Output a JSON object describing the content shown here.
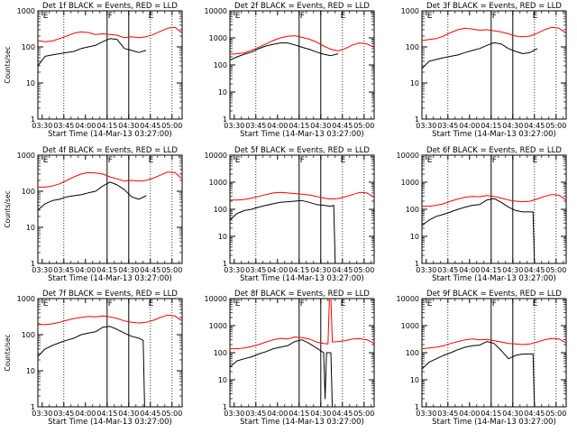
{
  "chart_data": [
    {
      "type": "line",
      "title": "Det 1f BLACK = Events, RED = LLD",
      "xlabel": "Start Time (14-Mar-13 03:27:00)",
      "ylabel": "Counts/sec",
      "ylim": [
        1,
        1000
      ],
      "yscale": "log",
      "y_ticks": [
        1,
        10,
        100,
        1000
      ],
      "y_tick_labels": [
        "1",
        "10",
        "100",
        "1000"
      ],
      "x_ticks": [
        "03:30",
        "03:45",
        "04:00",
        "04:15",
        "04:30",
        "04:45",
        "05:00"
      ],
      "markers": [
        "E",
        "F",
        "E"
      ],
      "series": [
        {
          "color": "#ff0000",
          "x": [
            0,
            5,
            10,
            15,
            20,
            25,
            30,
            35,
            40,
            45,
            50,
            55,
            60,
            65,
            70,
            75,
            80,
            85,
            90,
            95,
            100
          ],
          "values": [
            150,
            140,
            145,
            170,
            200,
            240,
            260,
            250,
            220,
            230,
            220,
            210,
            180,
            190,
            180,
            190,
            220,
            270,
            330,
            350,
            240
          ]
        },
        {
          "color": "#000000",
          "x": [
            0,
            5,
            10,
            15,
            20,
            25,
            30,
            35,
            40,
            45,
            50,
            55,
            60,
            65,
            70,
            75
          ],
          "values": [
            30,
            55,
            60,
            65,
            70,
            75,
            90,
            100,
            110,
            140,
            170,
            160,
            90,
            80,
            70,
            80
          ]
        }
      ]
    },
    {
      "type": "line",
      "title": "Det 2f BLACK = Events, RED = LLD",
      "xlabel": "Start Time (14-Mar-13 03:27:00)",
      "ylabel": "",
      "ylim": [
        1,
        10000
      ],
      "yscale": "log",
      "y_ticks": [
        1,
        10,
        100,
        1000,
        10000
      ],
      "y_tick_labels": [
        "1",
        "10",
        "100",
        "1000",
        "10000"
      ],
      "x_ticks": [
        "03:30",
        "03:45",
        "04:00",
        "04:15",
        "04:30",
        "04:45",
        "05:00"
      ],
      "markers": [
        "E",
        "F",
        "E"
      ],
      "series": [
        {
          "color": "#ff0000",
          "x": [
            0,
            5,
            10,
            15,
            20,
            25,
            30,
            35,
            40,
            45,
            50,
            55,
            60,
            65,
            70,
            75,
            80,
            85,
            90,
            95,
            100
          ],
          "values": [
            250,
            260,
            280,
            350,
            450,
            600,
            800,
            1000,
            1150,
            1200,
            1050,
            900,
            700,
            500,
            380,
            330,
            400,
            550,
            650,
            600,
            450
          ]
        },
        {
          "color": "#000000",
          "x": [
            0,
            5,
            10,
            15,
            20,
            25,
            30,
            35,
            40,
            45,
            50,
            55,
            60,
            65,
            70,
            75
          ],
          "values": [
            150,
            200,
            250,
            300,
            400,
            500,
            580,
            650,
            650,
            550,
            450,
            380,
            300,
            250,
            220,
            260
          ]
        }
      ]
    },
    {
      "type": "line",
      "title": "Det 3f BLACK = Events, RED = LLD",
      "xlabel": "Start Time (14-Mar-13 03:27:00)",
      "ylabel": "",
      "ylim": [
        1,
        1000
      ],
      "yscale": "log",
      "y_ticks": [
        1,
        10,
        100,
        1000
      ],
      "y_tick_labels": [
        "1",
        "10",
        "100",
        "1000"
      ],
      "x_ticks": [
        "03:30",
        "03:45",
        "04:00",
        "04:15",
        "04:30",
        "04:45",
        "05:00"
      ],
      "markers": [
        "E",
        "F",
        "E"
      ],
      "series": [
        {
          "color": "#ff0000",
          "x": [
            0,
            5,
            10,
            15,
            20,
            25,
            30,
            35,
            40,
            45,
            50,
            55,
            60,
            65,
            70,
            75,
            80,
            85,
            90,
            95,
            100
          ],
          "values": [
            150,
            160,
            170,
            200,
            250,
            300,
            330,
            310,
            290,
            300,
            280,
            260,
            230,
            200,
            190,
            200,
            240,
            300,
            350,
            330,
            240
          ]
        },
        {
          "color": "#000000",
          "x": [
            0,
            5,
            10,
            15,
            20,
            25,
            30,
            35,
            40,
            45,
            50,
            55,
            60,
            65,
            70,
            75,
            80
          ],
          "values": [
            25,
            40,
            45,
            50,
            55,
            60,
            70,
            80,
            90,
            110,
            130,
            120,
            90,
            75,
            65,
            70,
            90
          ]
        }
      ]
    },
    {
      "type": "line",
      "title": "Det 4f BLACK = Events, RED = LLD",
      "xlabel": "Start Time (14-Mar-13 03:27:00)",
      "ylabel": "Counts/sec",
      "ylim": [
        1,
        1000
      ],
      "yscale": "log",
      "y_ticks": [
        1,
        10,
        100,
        1000
      ],
      "y_tick_labels": [
        "1",
        "10",
        "100",
        "1000"
      ],
      "x_ticks": [
        "03:30",
        "03:45",
        "04:00",
        "04:15",
        "04:30",
        "04:45",
        "05:00"
      ],
      "markers": [
        "E",
        "F",
        "E"
      ],
      "series": [
        {
          "color": "#ff0000",
          "x": [
            0,
            5,
            10,
            15,
            20,
            25,
            30,
            35,
            40,
            45,
            50,
            55,
            60,
            65,
            70,
            75,
            80,
            85,
            90,
            95,
            100
          ],
          "values": [
            130,
            130,
            140,
            160,
            200,
            250,
            300,
            330,
            320,
            300,
            250,
            220,
            190,
            200,
            190,
            200,
            230,
            280,
            340,
            330,
            220
          ]
        },
        {
          "color": "#000000",
          "x": [
            0,
            5,
            10,
            15,
            20,
            25,
            30,
            35,
            40,
            45,
            50,
            55,
            60,
            65,
            70,
            75
          ],
          "values": [
            30,
            45,
            55,
            60,
            70,
            75,
            80,
            90,
            100,
            140,
            180,
            150,
            110,
            70,
            60,
            75
          ]
        }
      ]
    },
    {
      "type": "line",
      "title": "Det 5f BLACK = Events, RED = LLD",
      "xlabel": "Start Time (14-Mar-13 03:27:00)",
      "ylabel": "",
      "ylim": [
        1,
        10000
      ],
      "yscale": "log",
      "y_ticks": [
        1,
        10,
        100,
        1000,
        10000
      ],
      "y_tick_labels": [
        "1",
        "10",
        "100",
        "1000",
        "10000"
      ],
      "x_ticks": [
        "03:30",
        "03:45",
        "04:00",
        "04:15",
        "04:30",
        "04:45",
        "05:00"
      ],
      "markers": [
        "E",
        "F",
        "E"
      ],
      "series": [
        {
          "color": "#ff0000",
          "x": [
            0,
            5,
            10,
            15,
            20,
            25,
            30,
            35,
            40,
            45,
            50,
            55,
            60,
            65,
            70,
            75,
            80,
            85,
            90,
            95,
            100
          ],
          "values": [
            220,
            220,
            230,
            260,
            300,
            350,
            400,
            420,
            400,
            380,
            360,
            340,
            300,
            260,
            240,
            250,
            290,
            350,
            420,
            400,
            280
          ]
        },
        {
          "color": "#000000",
          "x": [
            0,
            5,
            10,
            15,
            20,
            25,
            30,
            35,
            40,
            45,
            50,
            55,
            60,
            65,
            70,
            72,
            73
          ],
          "values": [
            40,
            70,
            90,
            100,
            120,
            140,
            160,
            180,
            190,
            200,
            210,
            180,
            150,
            140,
            130,
            140,
            1
          ]
        }
      ]
    },
    {
      "type": "line",
      "title": "Det 6f BLACK = Events, RED = LLD",
      "xlabel": "Start Time (14-Mar-13 03:27:00)",
      "ylabel": "",
      "ylim": [
        1,
        10000
      ],
      "yscale": "log",
      "y_ticks": [
        1,
        10,
        100,
        1000,
        10000
      ],
      "y_tick_labels": [
        "1",
        "10",
        "100",
        "1000",
        "10000"
      ],
      "x_ticks": [
        "03:30",
        "03:45",
        "04:00",
        "04:15",
        "04:30",
        "04:45",
        "05:00"
      ],
      "markers": [
        "E",
        "F",
        "E"
      ],
      "series": [
        {
          "color": "#ff0000",
          "x": [
            0,
            5,
            10,
            15,
            20,
            25,
            30,
            35,
            40,
            45,
            50,
            55,
            60,
            65,
            70,
            75,
            80,
            85,
            90,
            95,
            100
          ],
          "values": [
            130,
            130,
            140,
            160,
            200,
            240,
            280,
            300,
            290,
            320,
            300,
            260,
            220,
            200,
            190,
            200,
            240,
            300,
            350,
            330,
            220
          ]
        },
        {
          "color": "#000000",
          "x": [
            0,
            5,
            10,
            15,
            20,
            25,
            30,
            35,
            40,
            45,
            50,
            55,
            60,
            65,
            70,
            75,
            77,
            78
          ],
          "values": [
            25,
            40,
            55,
            65,
            80,
            100,
            120,
            140,
            150,
            220,
            250,
            180,
            120,
            90,
            80,
            80,
            80,
            1
          ]
        }
      ]
    },
    {
      "type": "line",
      "title": "Det 7f BLACK = Events, RED = LLD",
      "xlabel": "Start Time (14-Mar-13 03:27:00)",
      "ylabel": "Counts/sec",
      "ylim": [
        1,
        1000
      ],
      "yscale": "log",
      "y_ticks": [
        1,
        10,
        100,
        1000
      ],
      "y_tick_labels": [
        "1",
        "10",
        "100",
        "1000"
      ],
      "x_ticks": [
        "03:30",
        "03:45",
        "04:00",
        "04:15",
        "04:30",
        "04:45",
        "05:00"
      ],
      "markers": [
        "E",
        "F",
        "E"
      ],
      "series": [
        {
          "color": "#ff0000",
          "x": [
            0,
            5,
            10,
            15,
            20,
            25,
            30,
            35,
            40,
            45,
            50,
            55,
            60,
            65,
            70,
            75,
            80,
            85,
            90,
            95,
            100
          ],
          "values": [
            190,
            190,
            200,
            220,
            250,
            280,
            300,
            320,
            310,
            330,
            310,
            280,
            240,
            220,
            210,
            220,
            250,
            300,
            350,
            330,
            240
          ]
        },
        {
          "color": "#000000",
          "x": [
            0,
            5,
            10,
            15,
            20,
            25,
            30,
            35,
            40,
            45,
            50,
            55,
            60,
            65,
            70,
            73,
            74
          ],
          "values": [
            25,
            40,
            50,
            60,
            70,
            80,
            100,
            110,
            120,
            160,
            170,
            140,
            110,
            90,
            80,
            70,
            1
          ]
        }
      ]
    },
    {
      "type": "line",
      "title": "Det 8f BLACK = Events, RED = LLD",
      "xlabel": "Start Time (14-Mar-13 03:27:00)",
      "ylabel": "",
      "ylim": [
        1,
        10000
      ],
      "yscale": "log",
      "y_ticks": [
        1,
        10,
        100,
        1000,
        10000
      ],
      "y_tick_labels": [
        "1",
        "10",
        "100",
        "1000",
        "10000"
      ],
      "x_ticks": [
        "03:30",
        "03:45",
        "04:00",
        "04:15",
        "04:30",
        "04:45",
        "05:00"
      ],
      "markers": [
        "E",
        "F",
        "E"
      ],
      "series": [
        {
          "color": "#ff0000",
          "x": [
            0,
            5,
            10,
            15,
            20,
            25,
            30,
            35,
            40,
            45,
            50,
            55,
            60,
            65,
            68,
            69,
            70,
            71,
            75,
            80,
            85,
            90,
            95,
            100
          ],
          "values": [
            140,
            140,
            150,
            170,
            200,
            250,
            300,
            340,
            320,
            380,
            360,
            320,
            250,
            220,
            210,
            10000,
            10000,
            250,
            260,
            280,
            320,
            330,
            300,
            220
          ]
        },
        {
          "color": "#000000",
          "x": [
            0,
            5,
            10,
            15,
            20,
            25,
            30,
            35,
            40,
            45,
            50,
            55,
            60,
            65,
            66,
            67,
            70,
            71
          ],
          "values": [
            30,
            50,
            60,
            70,
            90,
            110,
            140,
            160,
            180,
            260,
            300,
            220,
            150,
            100,
            2,
            100,
            100,
            1
          ]
        }
      ]
    },
    {
      "type": "line",
      "title": "Det 9f BLACK = Events, RED = LLD",
      "xlabel": "Start Time (14-Mar-13 03:27:00)",
      "ylabel": "",
      "ylim": [
        1,
        10000
      ],
      "yscale": "log",
      "y_ticks": [
        1,
        10,
        100,
        1000,
        10000
      ],
      "y_tick_labels": [
        "1",
        "10",
        "100",
        "1000",
        "10000"
      ],
      "x_ticks": [
        "03:30",
        "03:45",
        "04:00",
        "04:15",
        "04:30",
        "04:45",
        "05:00"
      ],
      "markers": [
        "E",
        "F",
        "E"
      ],
      "series": [
        {
          "color": "#ff0000",
          "x": [
            0,
            5,
            10,
            15,
            20,
            25,
            30,
            35,
            40,
            45,
            50,
            55,
            60,
            65,
            70,
            75,
            80,
            85,
            90,
            95,
            100
          ],
          "values": [
            140,
            150,
            160,
            180,
            220,
            260,
            300,
            320,
            300,
            310,
            280,
            250,
            220,
            210,
            200,
            210,
            250,
            300,
            340,
            320,
            230
          ]
        },
        {
          "color": "#000000",
          "x": [
            0,
            5,
            10,
            15,
            20,
            25,
            30,
            35,
            40,
            45,
            50,
            55,
            60,
            65,
            70,
            75,
            77,
            78
          ],
          "values": [
            25,
            45,
            60,
            80,
            100,
            130,
            160,
            180,
            190,
            260,
            220,
            120,
            60,
            80,
            90,
            90,
            90,
            1
          ]
        }
      ]
    }
  ]
}
